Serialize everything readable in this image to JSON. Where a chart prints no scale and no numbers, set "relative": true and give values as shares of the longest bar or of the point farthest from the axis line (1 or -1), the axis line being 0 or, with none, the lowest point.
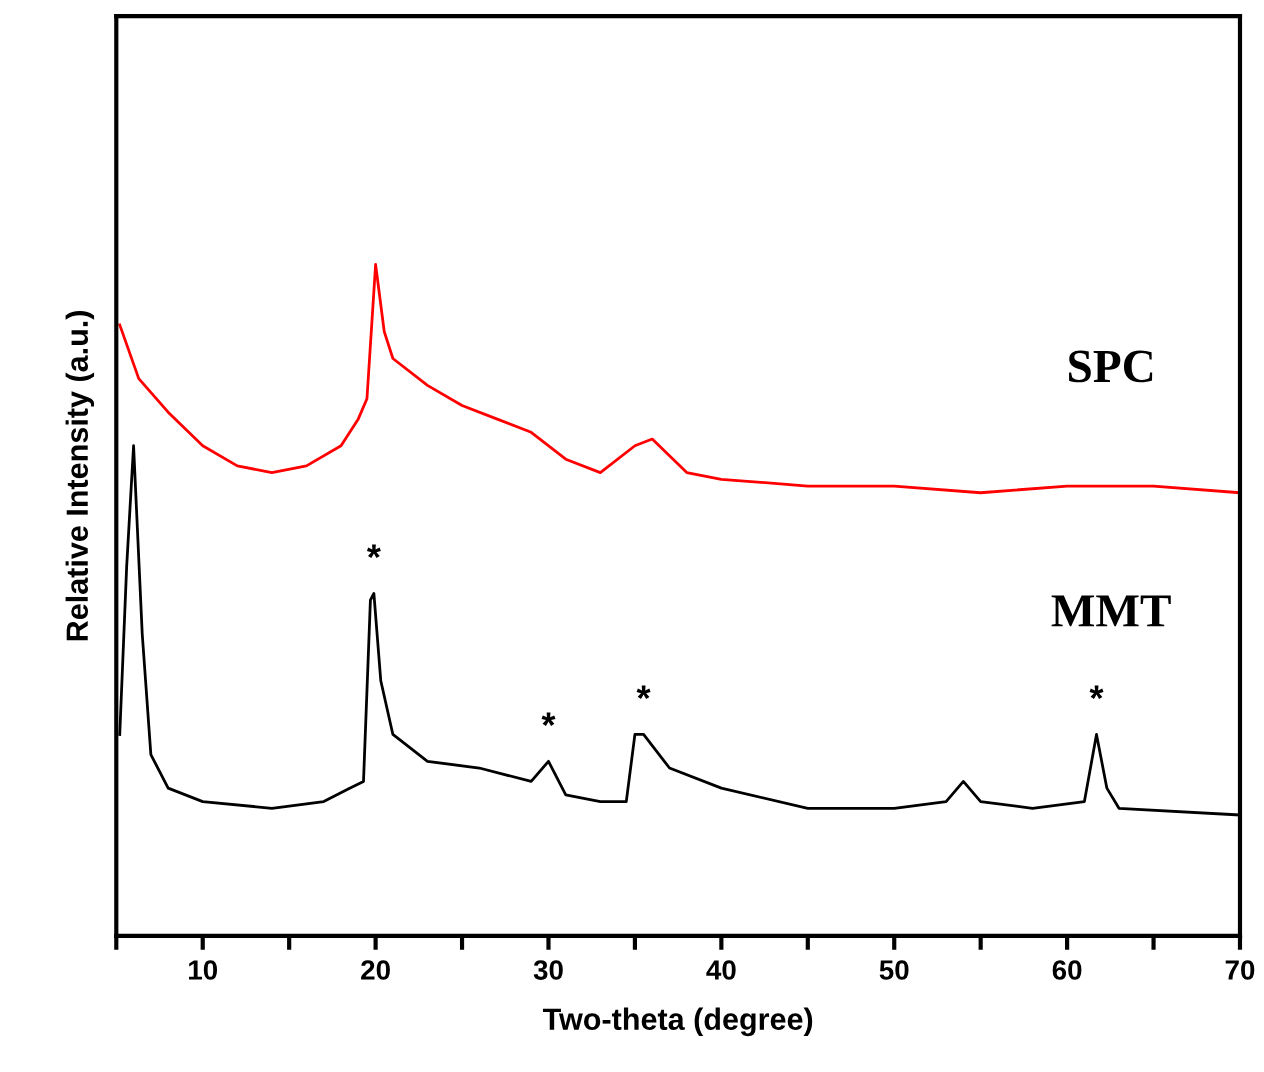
{
  "chart_data": {
    "type": "line",
    "relative": true,
    "xlabel": "Two-theta (degree)",
    "ylabel": "Relative Intensity (a.u.)",
    "xlim": [
      5,
      70
    ],
    "xticks": [
      {
        "value": 5,
        "label": null
      },
      10,
      {
        "value": 15,
        "label": null
      },
      20,
      {
        "value": 25,
        "label": null
      },
      30,
      {
        "value": 35,
        "label": null
      },
      40,
      {
        "value": 45,
        "label": null
      },
      50,
      {
        "value": 55,
        "label": null
      },
      60,
      {
        "value": 65,
        "label": null
      },
      70
    ],
    "tick_labels": "x",
    "grid": false,
    "legend": false,
    "marker": "none",
    "line_style": "solid",
    "series": [
      {
        "name": "SPC",
        "color": "#ff0000",
        "x": [
          5.2,
          6.3,
          8,
          10,
          12,
          14,
          16,
          18,
          19,
          19.5,
          20,
          20.5,
          21,
          23,
          25,
          27,
          29,
          31,
          33,
          35,
          36,
          38,
          40,
          45,
          50,
          55,
          60,
          65,
          70
        ],
        "values": [
          0.91,
          0.83,
          0.78,
          0.73,
          0.7,
          0.69,
          0.7,
          0.73,
          0.77,
          0.8,
          1.0,
          0.9,
          0.86,
          0.82,
          0.79,
          0.77,
          0.75,
          0.71,
          0.69,
          0.73,
          0.74,
          0.69,
          0.68,
          0.67,
          0.67,
          0.66,
          0.67,
          0.67,
          0.66
        ]
      },
      {
        "name": "MMT",
        "color": "#000000",
        "x": [
          5.2,
          5.6,
          6.0,
          6.5,
          7,
          8,
          10,
          14,
          17,
          18.5,
          19.3,
          19.7,
          19.9,
          20.3,
          21,
          23,
          26,
          29,
          30,
          31,
          33,
          34.5,
          35,
          35.5,
          37,
          40,
          45,
          50,
          53,
          54,
          55,
          58,
          61,
          61.7,
          62.3,
          63,
          70
        ],
        "values": [
          0.3,
          0.55,
          0.73,
          0.45,
          0.27,
          0.22,
          0.2,
          0.19,
          0.2,
          0.22,
          0.23,
          0.5,
          0.51,
          0.38,
          0.3,
          0.26,
          0.25,
          0.23,
          0.26,
          0.21,
          0.2,
          0.2,
          0.3,
          0.3,
          0.25,
          0.22,
          0.19,
          0.19,
          0.2,
          0.23,
          0.2,
          0.19,
          0.2,
          0.3,
          0.22,
          0.19,
          0.18
        ]
      }
    ],
    "annotations": [
      {
        "text": "*",
        "x": 19.9,
        "y": 0.51
      },
      {
        "text": "*",
        "x": 30,
        "y": 0.26
      },
      {
        "text": "*",
        "x": 35.5,
        "y": 0.3
      },
      {
        "text": "*",
        "x": 61.7,
        "y": 0.3
      }
    ]
  }
}
